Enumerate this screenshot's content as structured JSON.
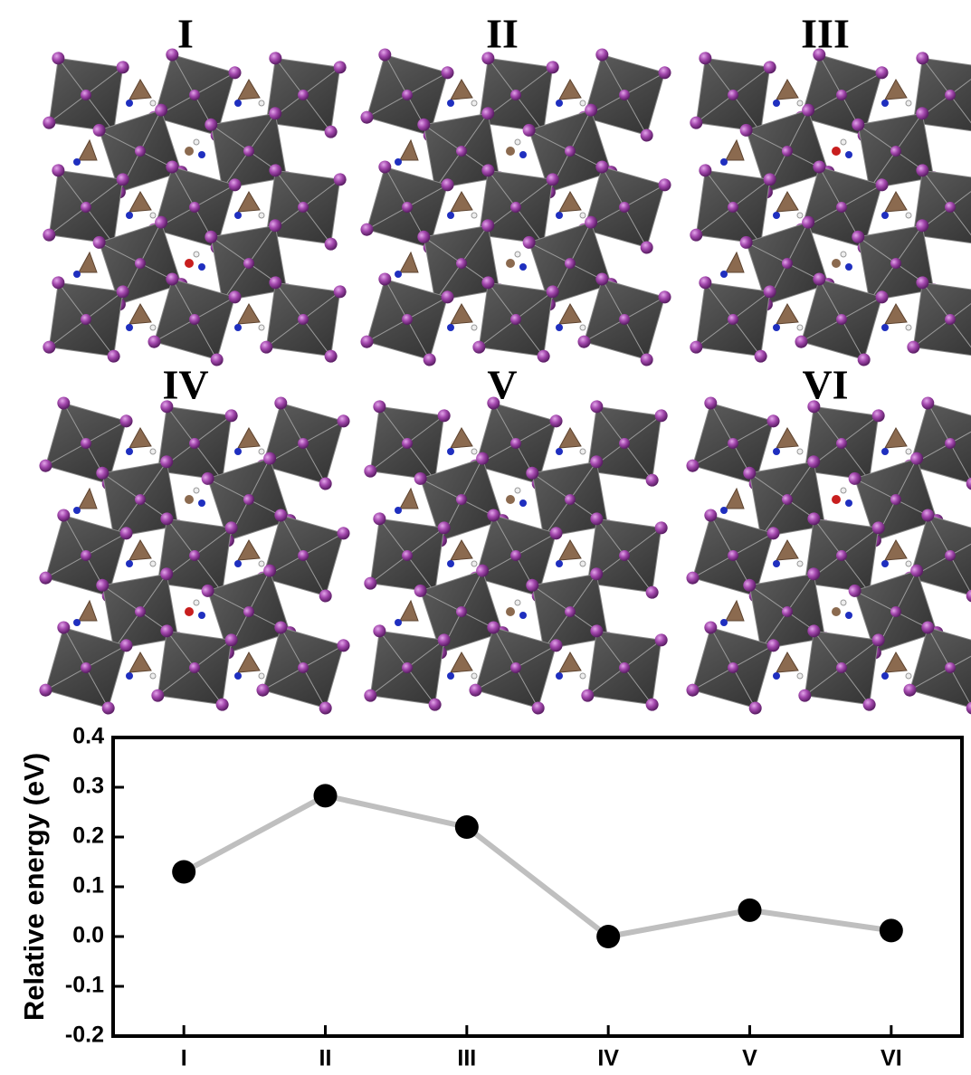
{
  "panels": [
    "I",
    "II",
    "III",
    "IV",
    "V",
    "VI"
  ],
  "chart_data": {
    "type": "line",
    "ylabel": "Relative energy (eV)",
    "categories": [
      "I",
      "II",
      "III",
      "IV",
      "V",
      "VI"
    ],
    "values": [
      0.13,
      0.283,
      0.22,
      0.0,
      0.053,
      0.012
    ],
    "color": "#000000",
    "line_color": "#bfbfbf",
    "ylim": [
      -0.2,
      0.4
    ],
    "yticks": [
      -0.2,
      -0.1,
      {
        "value": 0,
        "label": "0.0"
      },
      0.1,
      0.2,
      0.3,
      0.4
    ]
  }
}
